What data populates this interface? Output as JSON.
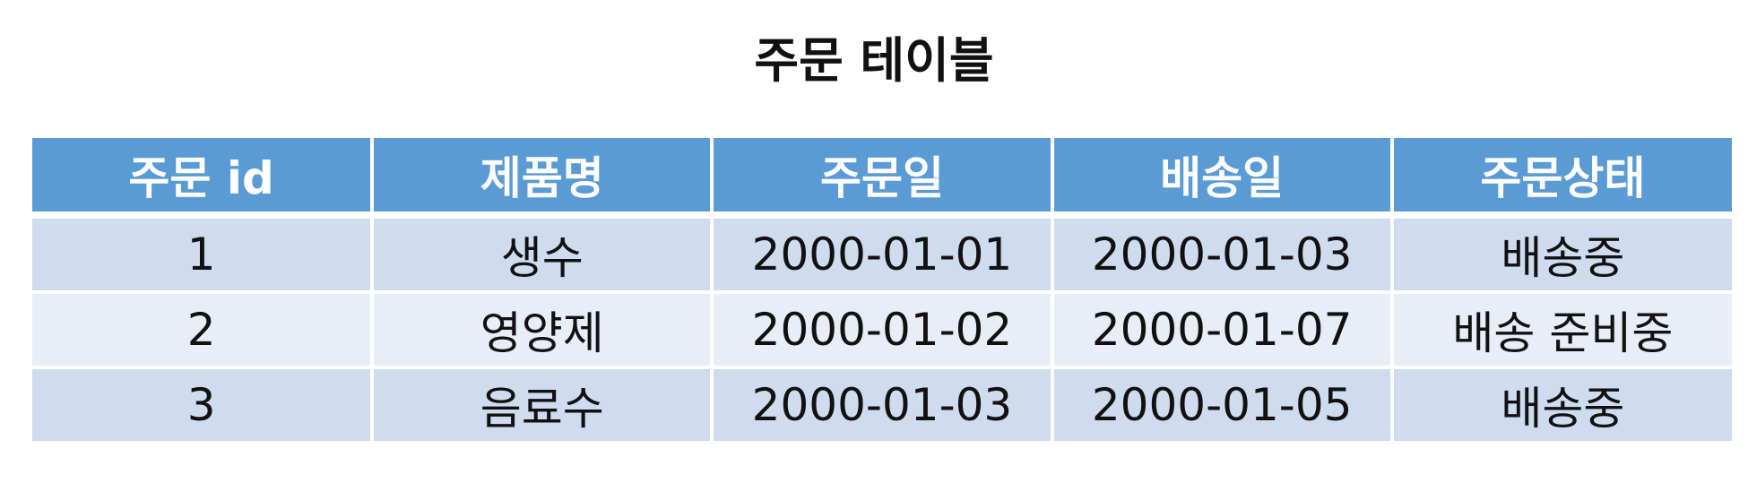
{
  "title": "주문 테이블",
  "table": {
    "columns": [
      "주문 id",
      "제품명",
      "주문일",
      "배송일",
      "주문상태"
    ],
    "rows": [
      [
        "1",
        "생수",
        "2000-01-01",
        "2000-01-03",
        "배송중"
      ],
      [
        "2",
        "영양제",
        "2000-01-02",
        "2000-01-07",
        "배송 준비중"
      ],
      [
        "3",
        "음료수",
        "2000-01-03",
        "2000-01-05",
        "배송중"
      ]
    ]
  },
  "colors": {
    "header_bg": "#5b9bd5",
    "row_odd_bg": "#cfdbef",
    "row_even_bg": "#e8edf7"
  }
}
